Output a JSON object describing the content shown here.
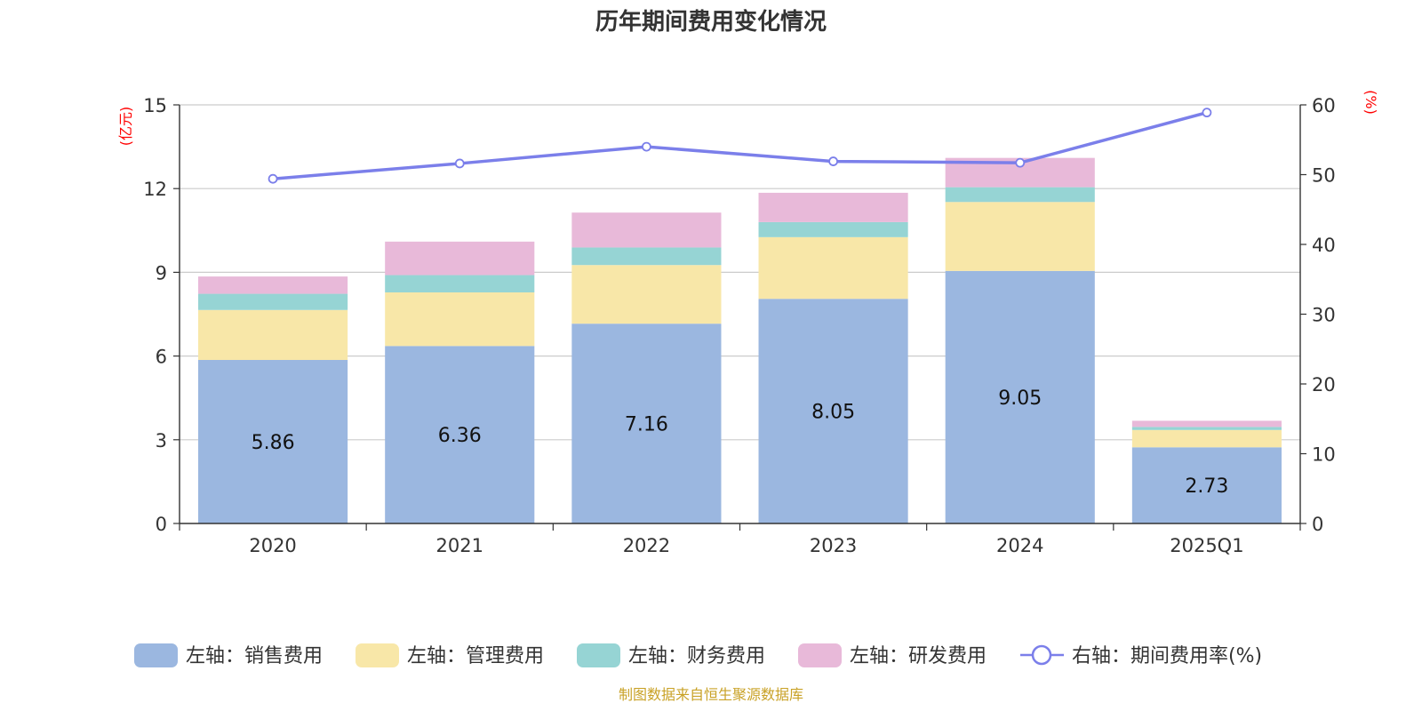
{
  "chart_data": {
    "type": "bar",
    "title": "历年期间费用变化情况",
    "categories": [
      "2020",
      "2021",
      "2022",
      "2023",
      "2024",
      "2025Q1"
    ],
    "left_axis": {
      "unit": "(亿元)",
      "ylim": [
        0,
        15
      ],
      "ticks": [
        0,
        3,
        6,
        9,
        12,
        15
      ]
    },
    "right_axis": {
      "unit": "(%)",
      "ylim": [
        0,
        60
      ],
      "ticks": [
        0,
        10,
        20,
        30,
        40,
        50,
        60
      ]
    },
    "series": [
      {
        "name": "左轴：销售费用",
        "type": "bar",
        "axis": "left",
        "color": "#9bb7e0",
        "values": [
          5.86,
          6.36,
          7.16,
          8.05,
          9.05,
          2.73
        ],
        "show_labels": true
      },
      {
        "name": "左轴：管理费用",
        "type": "bar",
        "axis": "left",
        "color": "#f8e7a8",
        "values": [
          1.79,
          1.92,
          2.1,
          2.21,
          2.47,
          0.62
        ]
      },
      {
        "name": "左轴：财务费用",
        "type": "bar",
        "axis": "left",
        "color": "#96d4d4",
        "values": [
          0.58,
          0.62,
          0.63,
          0.54,
          0.53,
          0.11
        ]
      },
      {
        "name": "左轴：研发费用",
        "type": "bar",
        "axis": "left",
        "color": "#e8b9d9",
        "values": [
          0.62,
          1.2,
          1.25,
          1.05,
          1.05,
          0.22
        ]
      },
      {
        "name": "右轴：期间费用率(%)",
        "type": "line",
        "axis": "right",
        "color": "#7b7fea",
        "values": [
          49.4,
          51.6,
          54.0,
          51.9,
          51.7,
          58.9
        ]
      }
    ],
    "source": "制图数据来自恒生聚源数据库"
  }
}
